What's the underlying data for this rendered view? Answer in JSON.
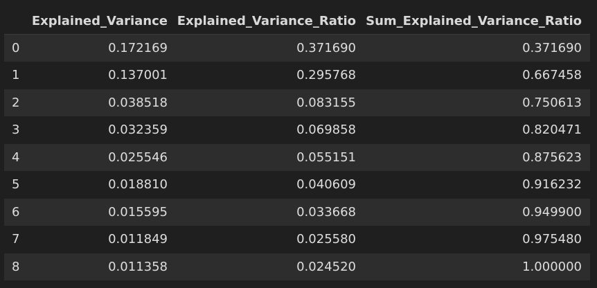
{
  "table": {
    "index_header": "",
    "columns": [
      "Explained_Variance",
      "Explained_Variance_Ratio",
      "Sum_Explained_Variance_Ratio"
    ],
    "rows": [
      {
        "index": "0",
        "cells": [
          "0.172169",
          "0.371690",
          "0.371690"
        ]
      },
      {
        "index": "1",
        "cells": [
          "0.137001",
          "0.295768",
          "0.667458"
        ]
      },
      {
        "index": "2",
        "cells": [
          "0.038518",
          "0.083155",
          "0.750613"
        ]
      },
      {
        "index": "3",
        "cells": [
          "0.032359",
          "0.069858",
          "0.820471"
        ]
      },
      {
        "index": "4",
        "cells": [
          "0.025546",
          "0.055151",
          "0.875623"
        ]
      },
      {
        "index": "5",
        "cells": [
          "0.018810",
          "0.040609",
          "0.916232"
        ]
      },
      {
        "index": "6",
        "cells": [
          "0.015595",
          "0.033668",
          "0.949900"
        ]
      },
      {
        "index": "7",
        "cells": [
          "0.011849",
          "0.025580",
          "0.975480"
        ]
      },
      {
        "index": "8",
        "cells": [
          "0.011358",
          "0.024520",
          "1.000000"
        ]
      }
    ]
  },
  "colors": {
    "background": "#1f1f1f",
    "row_stripe": "#2d2d2d",
    "text": "#dedede"
  }
}
